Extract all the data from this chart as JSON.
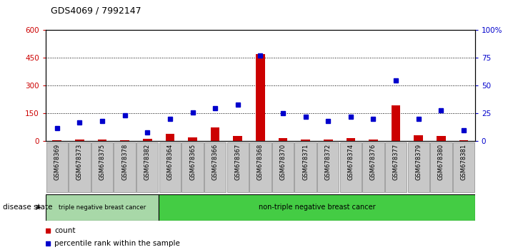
{
  "title": "GDS4069 / 7992147",
  "samples": [
    "GSM678369",
    "GSM678373",
    "GSM678375",
    "GSM678378",
    "GSM678382",
    "GSM678364",
    "GSM678365",
    "GSM678366",
    "GSM678367",
    "GSM678368",
    "GSM678370",
    "GSM678371",
    "GSM678372",
    "GSM678374",
    "GSM678376",
    "GSM678377",
    "GSM678379",
    "GSM678380",
    "GSM678381"
  ],
  "counts": [
    3,
    8,
    10,
    5,
    12,
    38,
    22,
    75,
    28,
    470,
    15,
    8,
    10,
    18,
    10,
    195,
    32,
    28,
    6
  ],
  "percentiles": [
    12,
    17,
    18,
    23,
    8,
    20,
    26,
    30,
    33,
    77,
    25,
    22,
    18,
    22,
    20,
    55,
    20,
    28,
    10
  ],
  "group1_count": 5,
  "group2_count": 14,
  "group1_label": "triple negative breast cancer",
  "group2_label": "non-triple negative breast cancer",
  "ylim_left": [
    0,
    600
  ],
  "ylim_right": [
    0,
    100
  ],
  "yticks_left": [
    0,
    150,
    300,
    450,
    600
  ],
  "yticks_right": [
    0,
    25,
    50,
    75,
    100
  ],
  "bar_color": "#cc0000",
  "dot_color": "#0000cc",
  "bg_color": "#ffffff",
  "tick_bg": "#c8c8c8",
  "group1_bg": "#a8d8a8",
  "group2_bg": "#44cc44",
  "legend_count_label": "count",
  "legend_pct_label": "percentile rank within the sample",
  "disease_state_label": "disease state"
}
